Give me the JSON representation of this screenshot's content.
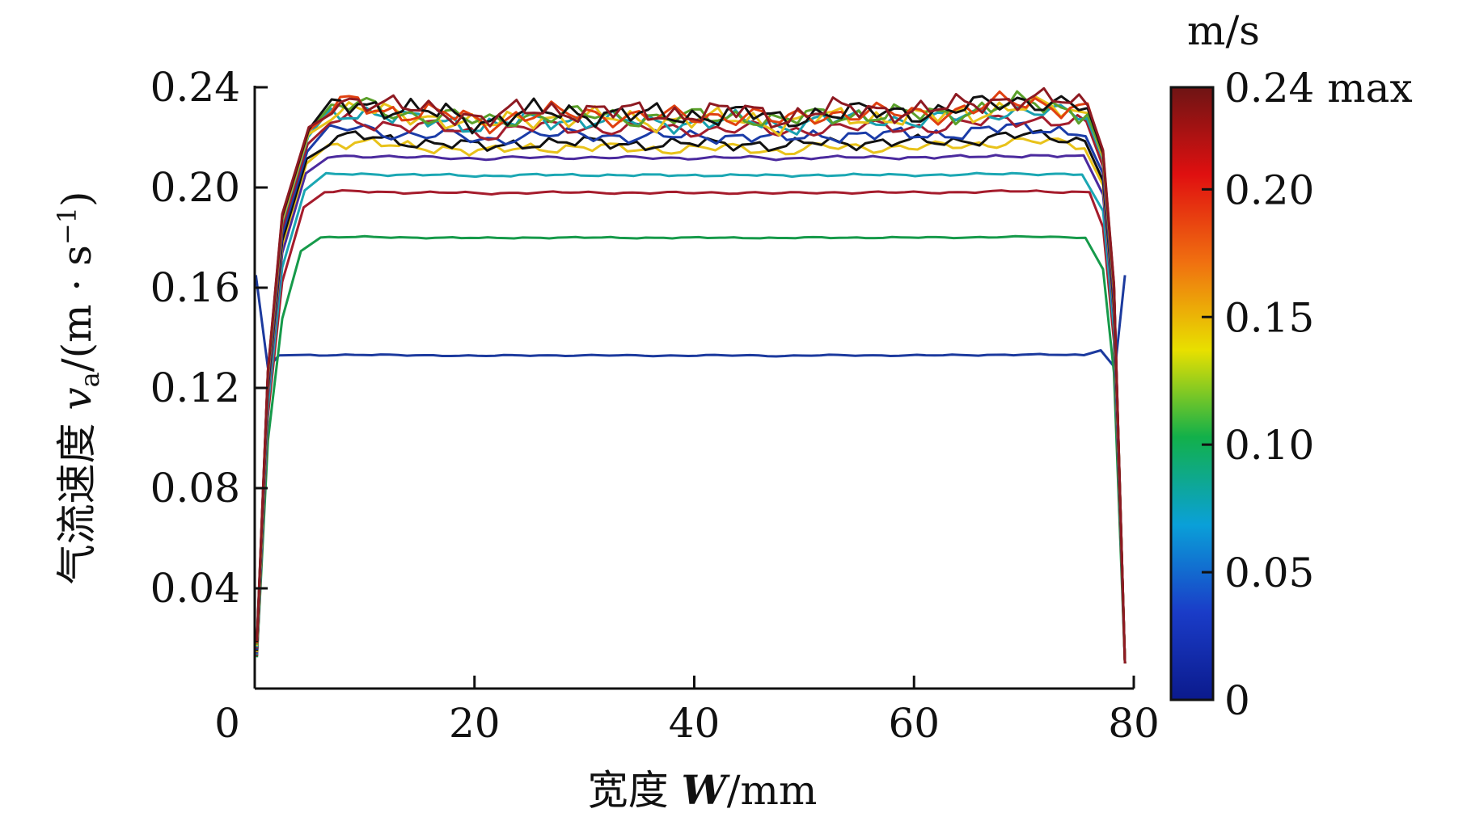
{
  "chart_data": {
    "type": "line",
    "title": "",
    "xlabel": "宽度 W/mm",
    "ylabel": "气流速度 va/(m·s⁻¹)",
    "ylabel_parts": {
      "prefix": "气流速度 ",
      "var": "v",
      "sub": "a",
      "unit_open": "/(m · s",
      "sup": "−1",
      "unit_close": ")"
    },
    "xlabel_parts": {
      "prefix": "宽度 ",
      "var": "W",
      "suffix": "/mm"
    },
    "xlim": [
      0,
      80
    ],
    "ylim": [
      0,
      0.24
    ],
    "x_ticks": [
      0,
      20,
      40,
      60,
      80
    ],
    "x_tick_labels": [
      "0",
      "20",
      "40",
      "60",
      "80"
    ],
    "y_ticks": [
      0.04,
      0.08,
      0.12,
      0.16,
      0.2,
      0.24
    ],
    "y_tick_labels": [
      "0.04",
      "0.08",
      "0.12",
      "0.16",
      "0.20",
      "0.24"
    ],
    "grid": false,
    "legend": "none",
    "colorbar": {
      "unit": "m/s",
      "range": [
        0,
        0.24
      ],
      "ticks": [
        0,
        0.05,
        0.1,
        0.15,
        0.2,
        0.24
      ],
      "tick_labels": [
        "0",
        "0.05",
        "0.10",
        "0.15",
        "0.20",
        "0.24 max"
      ],
      "colormap": [
        "#0b1a8c",
        "#1a3cc8",
        "#0aa0d8",
        "#12b04a",
        "#e8e000",
        "#f07010",
        "#e01010",
        "#6e1414"
      ]
    },
    "series": [
      {
        "color": "#1c3a9e",
        "plateau": 0.133,
        "noise": 0.0003,
        "edge_spike": 0.165
      },
      {
        "color": "#169a4a",
        "plateau": 0.18,
        "noise": 0.0003
      },
      {
        "color": "#a51c2c",
        "plateau": 0.198,
        "noise": 0.0005
      },
      {
        "color": "#1ba7b3",
        "plateau": 0.205,
        "noise": 0.0005
      },
      {
        "color": "#4b2a9e",
        "plateau": 0.212,
        "noise": 0.0007
      },
      {
        "color": "#e8c21a",
        "plateau": 0.216,
        "noise": 0.0025
      },
      {
        "color": "#111111",
        "plateau": 0.218,
        "noise": 0.0028
      },
      {
        "color": "#1b3ca8",
        "plateau": 0.221,
        "noise": 0.003
      },
      {
        "color": "#a31d2d",
        "plateau": 0.224,
        "noise": 0.0035
      },
      {
        "color": "#18a0b0",
        "plateau": 0.227,
        "noise": 0.004
      },
      {
        "color": "#e8c21a",
        "plateau": 0.228,
        "noise": 0.0045
      },
      {
        "color": "#5aa02a",
        "plateau": 0.229,
        "noise": 0.0045
      },
      {
        "color": "#e04010",
        "plateau": 0.2295,
        "noise": 0.0048
      },
      {
        "color": "#111111",
        "plateau": 0.23,
        "noise": 0.005
      },
      {
        "color": "#8e1a22",
        "plateau": 0.231,
        "noise": 0.005
      }
    ]
  }
}
